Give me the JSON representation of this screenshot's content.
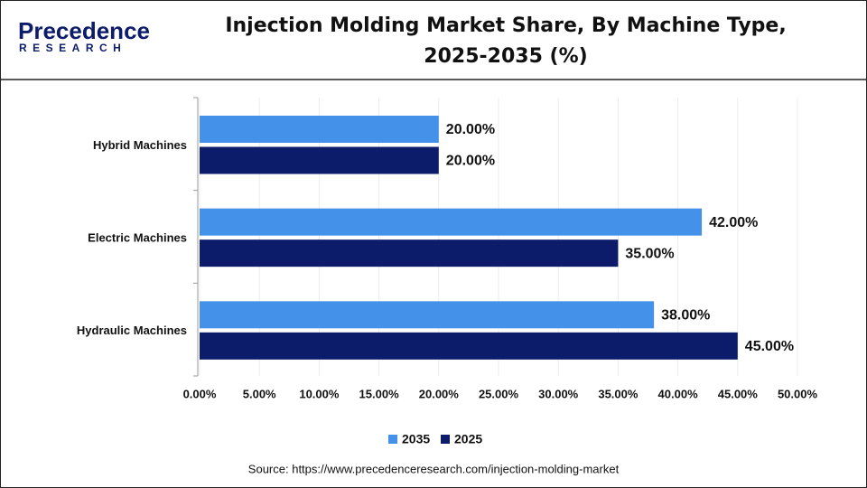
{
  "brand": {
    "name": "Precedence",
    "tagline": "RESEARCH"
  },
  "chart_data": {
    "type": "hbar",
    "title": "Injection Molding Market Share, By Machine Type, 2025-2035 (%)",
    "source": "Source: https://www.precedenceresearch.com/injection-molding-market",
    "categories": [
      "Hybrid Machines",
      "Electric Machines",
      "Hydraulic Machines"
    ],
    "series": [
      {
        "name": "2035",
        "color": "#4391e8",
        "values": [
          20,
          42,
          38
        ],
        "value_labels": [
          "20.00%",
          "42.00%",
          "38.00%"
        ]
      },
      {
        "name": "2025",
        "color": "#0c1c6b",
        "values": [
          20,
          35,
          45
        ],
        "value_labels": [
          "20.00%",
          "35.00%",
          "45.00%"
        ]
      }
    ],
    "xlim": [
      0,
      50
    ],
    "xticks": [
      {
        "value": 0,
        "label": "0.00%"
      },
      {
        "value": 5,
        "label": "5.00%"
      },
      {
        "value": 10,
        "label": "10.00%"
      },
      {
        "value": 15,
        "label": "15.00%"
      },
      {
        "value": 20,
        "label": "20.00%"
      },
      {
        "value": 25,
        "label": "25.00%"
      },
      {
        "value": 30,
        "label": "30.00%"
      },
      {
        "value": 35,
        "label": "35.00%"
      },
      {
        "value": 40,
        "label": "40.00%"
      },
      {
        "value": 45,
        "label": "45.00%"
      },
      {
        "value": 50,
        "label": "50.00%"
      }
    ],
    "grid": true,
    "legend": "bottom"
  }
}
